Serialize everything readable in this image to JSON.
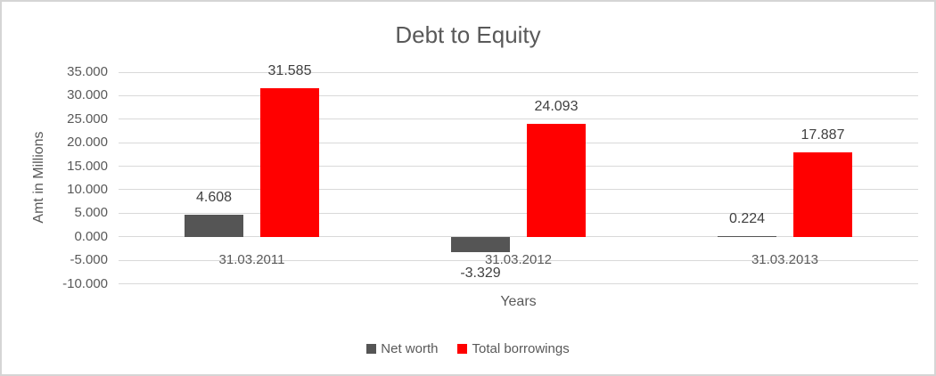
{
  "chart_data": {
    "type": "bar",
    "title": "Debt to Equity",
    "xlabel": "Years",
    "ylabel": "Amt in Millions",
    "categories": [
      "31.03.2011",
      "31.03.2012",
      "31.03.2013"
    ],
    "series": [
      {
        "name": "Net worth",
        "color": "#555555",
        "values": [
          4608,
          -3329,
          224
        ],
        "value_labels": [
          "4.608",
          "-3.329",
          "0.224"
        ]
      },
      {
        "name": "Total borrowings",
        "color": "#ff0000",
        "values": [
          31585,
          24093,
          17887
        ],
        "value_labels": [
          "31.585",
          "24.093",
          "17.887"
        ]
      }
    ],
    "ylim": [
      -10000,
      35000
    ],
    "ytick_step": 5000,
    "ytick_labels": [
      "-10.000",
      "-5.000",
      "0.000",
      "5.000",
      "10.000",
      "15.000",
      "20.000",
      "25.000",
      "30.000",
      "35.000"
    ],
    "grid": true,
    "legend_position": "bottom",
    "colors": {
      "title_text": "#595959",
      "axis_text": "#595959",
      "data_label_text": "#404040",
      "gridline": "#d9d9d9",
      "border": "#d5d5d5",
      "background": "#ffffff"
    }
  }
}
